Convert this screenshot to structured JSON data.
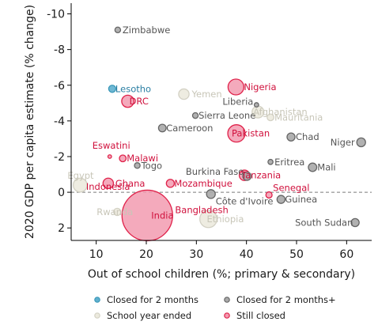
{
  "chart_data": {
    "type": "scatter",
    "xlabel": "Out of school children (%; primary & secondary)",
    "ylabel": "2020 GDP per capita estimate (% change)",
    "xlim": [
      5,
      65
    ],
    "ylim": [
      2.7,
      -10.6
    ],
    "y_inverted": true,
    "x_ticks": [
      10,
      20,
      30,
      40,
      50,
      60
    ],
    "y_ticks": [
      -10,
      -8,
      -6,
      -4,
      -2,
      0,
      2
    ],
    "y_tick_labels": [
      "-10",
      "-8",
      "-6",
      "-4",
      "-2",
      "0",
      "2"
    ],
    "reference_line": {
      "y": 0,
      "style": "dashed"
    },
    "grid": false,
    "colors": {
      "closed_2m": "#3a98b8",
      "closed_2m_plus": "#8c8c8c",
      "school_year_ended": "#dedcd0",
      "still_closed": "#e0224a"
    },
    "series": [
      {
        "name": "Closed for 2 months",
        "key": "closed_2m",
        "points": [
          {
            "label": "Lesotho",
            "x": 13.2,
            "y": -5.8,
            "size": 8
          }
        ]
      },
      {
        "name": "Closed for 2 months+",
        "key": "closed_2m_plus",
        "points": [
          {
            "label": "Zimbabwe",
            "x": 14.3,
            "y": -9.1,
            "size": 5
          },
          {
            "label": "Liberia",
            "x": 42.0,
            "y": -4.9,
            "size": 3
          },
          {
            "label": "Sierra Leone",
            "x": 29.8,
            "y": -4.3,
            "size": 5
          },
          {
            "label": "Cameroon",
            "x": 23.2,
            "y": -3.6,
            "size": 9
          },
          {
            "label": "Chad",
            "x": 48.9,
            "y": -3.1,
            "size": 10
          },
          {
            "label": "Niger",
            "x": 62.9,
            "y": -2.8,
            "size": 12
          },
          {
            "label": "Togo",
            "x": 18.2,
            "y": -1.5,
            "size": 5
          },
          {
            "label": "Eritrea",
            "x": 44.8,
            "y": -1.7,
            "size": 4
          },
          {
            "label": "Mali",
            "x": 53.2,
            "y": -1.4,
            "size": 11
          },
          {
            "label": "Burkina Faso",
            "x": 40.1,
            "y": -0.9,
            "size": 11
          },
          {
            "label": "Côte d'Ivoire",
            "x": 32.9,
            "y": 0.1,
            "size": 12
          },
          {
            "label": "Guinea",
            "x": 46.9,
            "y": 0.4,
            "size": 10
          },
          {
            "label": "South Sudan",
            "x": 61.7,
            "y": 1.7,
            "size": 10
          }
        ]
      },
      {
        "name": "School year ended",
        "key": "school_year_ended",
        "points": [
          {
            "label": "Yemen",
            "x": 27.5,
            "y": -5.5,
            "size": 17
          },
          {
            "label": "Afghanistan",
            "x": 42.3,
            "y": -4.5,
            "size": 22
          },
          {
            "label": "Mauritania",
            "x": 44.8,
            "y": -4.2,
            "size": 7
          },
          {
            "label": "Egypt",
            "x": 6.8,
            "y": -0.4,
            "size": 30
          },
          {
            "label": "Rwanda",
            "x": 14.2,
            "y": 1.1,
            "size": 8
          },
          {
            "label": "Ethiopia",
            "x": 32.4,
            "y": 1.5,
            "size": 46
          }
        ]
      },
      {
        "name": "Still closed",
        "key": "still_closed",
        "points": [
          {
            "label": "Nigeria",
            "x": 37.9,
            "y": -5.9,
            "size": 39
          },
          {
            "label": "DRC",
            "x": 16.3,
            "y": -5.1,
            "size": 23
          },
          {
            "label": "Pakistan",
            "x": 38.0,
            "y": -3.3,
            "size": 47
          },
          {
            "label": "Eswatini",
            "x": 12.7,
            "y": -2.0,
            "size": 2
          },
          {
            "label": "Malawi",
            "x": 15.3,
            "y": -1.9,
            "size": 7
          },
          {
            "label": "Ghana",
            "x": 12.4,
            "y": -0.5,
            "size": 17
          },
          {
            "label": "Indonesia",
            "x": 12.4,
            "y": -0.5,
            "size": 0
          },
          {
            "label": "Mozambique",
            "x": 24.8,
            "y": -0.5,
            "size": 10
          },
          {
            "label": "Tanzania",
            "x": 39.6,
            "y": -0.95,
            "size": 17
          },
          {
            "label": "Senegal",
            "x": 44.5,
            "y": 0.15,
            "size": 6
          },
          {
            "label": "India",
            "x": 20.2,
            "y": 1.3,
            "size": 400
          },
          {
            "label": "Bangladesh",
            "x": 24.8,
            "y": 1.0,
            "size": 0
          }
        ]
      }
    ],
    "legend": {
      "placement": "bottom",
      "entries": [
        {
          "label": "Closed for 2 months",
          "key": "closed_2m"
        },
        {
          "label": "Closed for 2 months+",
          "key": "closed_2m_plus"
        },
        {
          "label": "School year ended",
          "key": "school_year_ended"
        },
        {
          "label": "Still closed",
          "key": "still_closed"
        }
      ]
    }
  }
}
